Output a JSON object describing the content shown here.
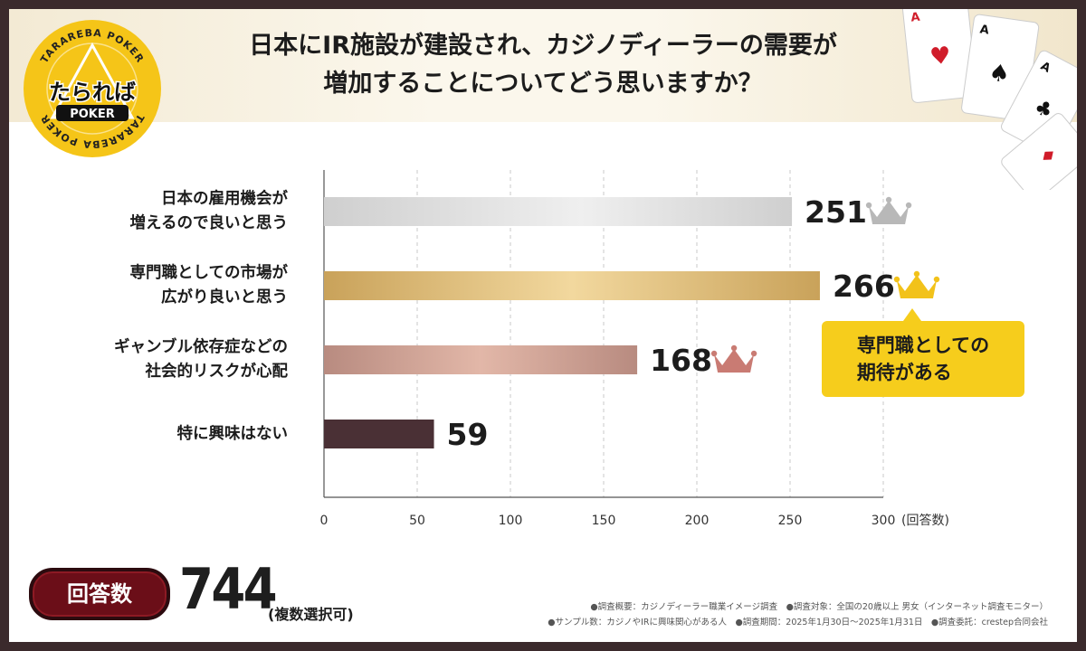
{
  "title": {
    "line1": "日本にIR施設が建設され、カジノディーラーの需要が",
    "line2": "増加することについてどう思いますか？"
  },
  "logo": {
    "main": "たられば",
    "sub": "POKER",
    "ring_top": "TARAREBA POKER",
    "ring_bottom": "TARAREBA POKER"
  },
  "chart_data": {
    "type": "bar",
    "orientation": "horizontal",
    "categories": [
      "日本の雇用機会が\n増えるので良いと思う",
      "専門職としての市場が\n広がり良いと思う",
      "ギャンブル依存症などの\n社会的リスクが心配",
      "特に興味はない"
    ],
    "values": [
      251,
      266,
      168,
      59
    ],
    "value_labels": [
      "251",
      "266",
      "168",
      "59"
    ],
    "ticks": [
      "0",
      "50",
      "100",
      "150",
      "200",
      "250",
      "300"
    ],
    "xlim": [
      0,
      300
    ],
    "xlabel": "(回答数)",
    "grid": true,
    "bar_colors": [
      "#d9d9d9",
      "#d4a85a",
      "#c7978b",
      "#4a3035"
    ],
    "crown_colors": [
      "#b8b8b8",
      "#f2c21a",
      "#c97b73",
      ""
    ]
  },
  "callout": {
    "text": "専門職としての\n期待がある",
    "color": "#f6cd1c"
  },
  "responses": {
    "label": "回答数",
    "count": "744",
    "note": "(複数選択可)"
  },
  "footnotes": {
    "line1": "●調査概要：カジノディーラー職業イメージ調査　●調査対象：全国の20歳以上 男女（インターネット調査モニター）",
    "line2": "●サンプル数：カジノやIRに興味関心がある人　●調査期間：2025年1月30日～2025年1月31日　●調査委託：crestep合同会社"
  },
  "colors": {
    "frame": "#3b2a2c",
    "badge": "#6b0e18",
    "gold": "#f6cd1c"
  }
}
